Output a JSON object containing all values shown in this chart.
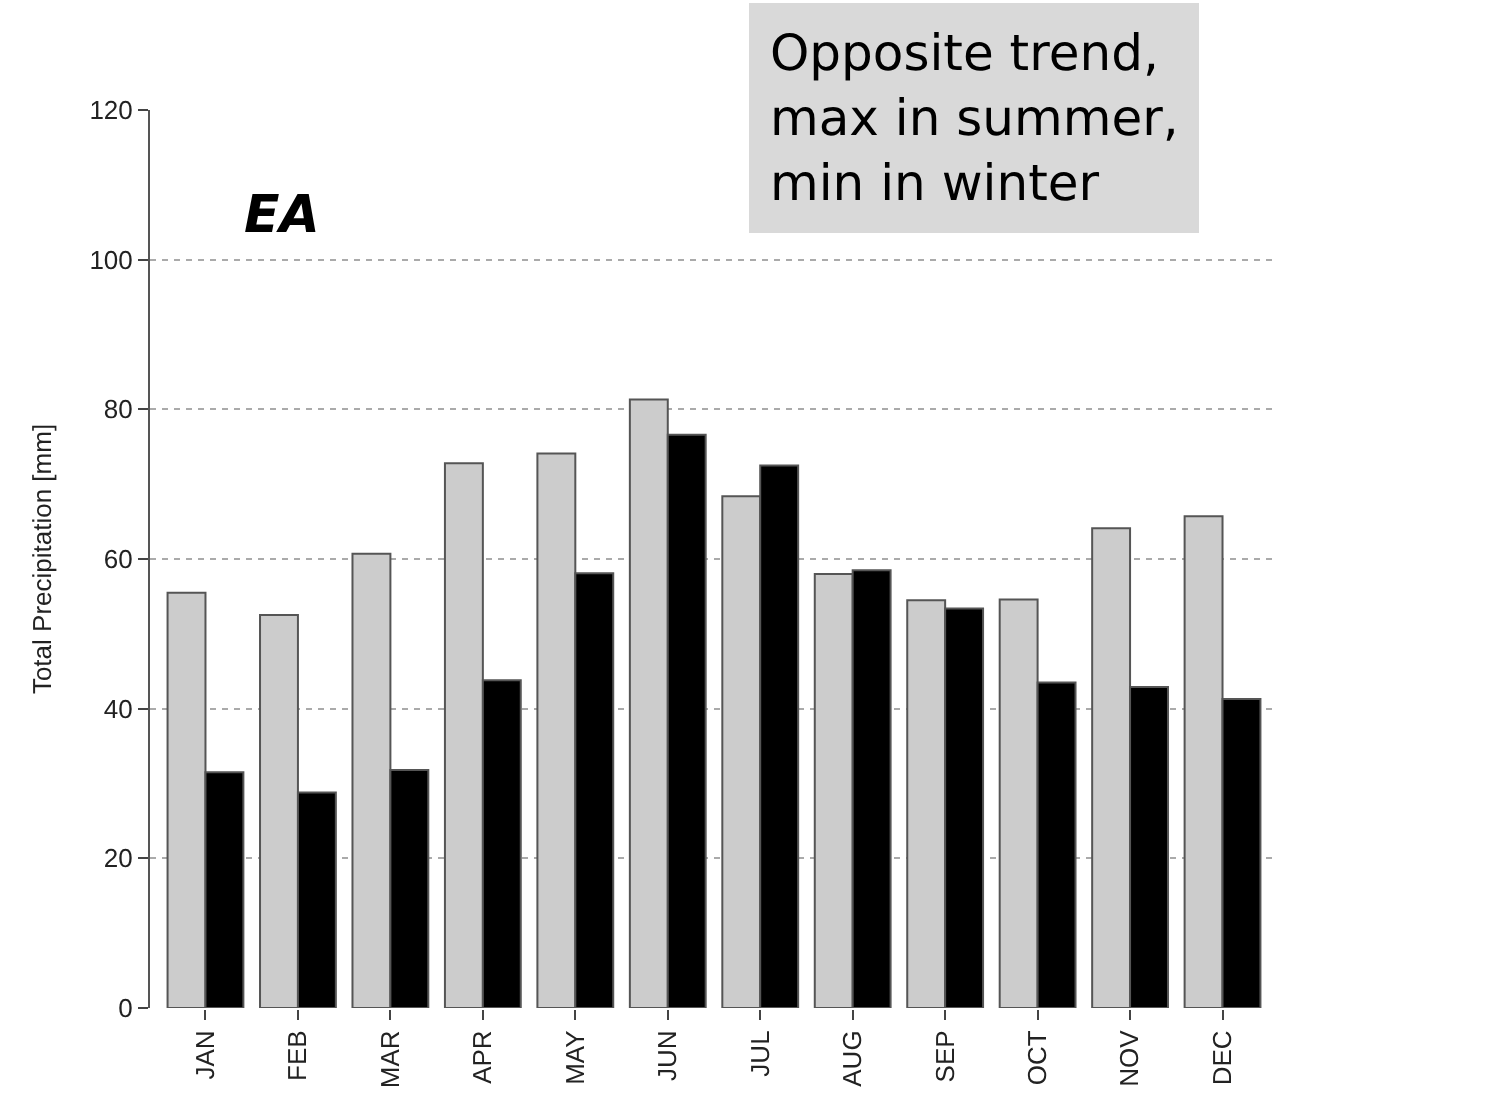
{
  "chart_data": {
    "type": "bar",
    "ylabel": "Total Precipitation [mm]",
    "categories": [
      "JAN",
      "FEB",
      "MAR",
      "APR",
      "MAY",
      "JUN",
      "JUL",
      "AUG",
      "SEP",
      "OCT",
      "NOV",
      "DEC"
    ],
    "series": [
      {
        "color": "#cccccc",
        "values": [
          55.5,
          52.5,
          60.7,
          72.8,
          74.1,
          81.3,
          68.4,
          58.0,
          54.5,
          54.6,
          64.1,
          65.7
        ]
      },
      {
        "color": "#000000",
        "values": [
          31.5,
          28.8,
          31.8,
          43.8,
          58.1,
          76.6,
          72.5,
          58.5,
          53.4,
          43.5,
          42.9,
          41.3
        ]
      }
    ],
    "ylim": [
      0,
      120
    ],
    "yticks": [
      0,
      20,
      40,
      60,
      80,
      100,
      120
    ],
    "grid": "y",
    "annotations": [
      "EA",
      "Opposite trend,\nmax in summer,\nmin in winter"
    ]
  }
}
